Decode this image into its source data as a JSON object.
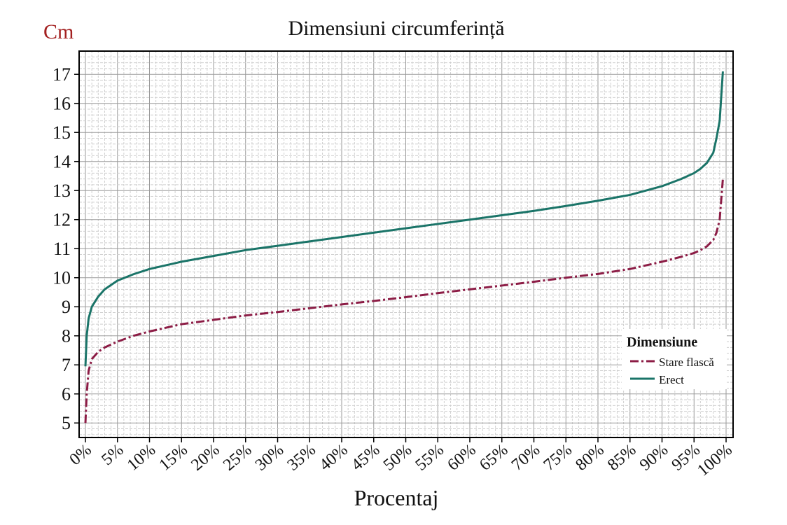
{
  "chart_data": {
    "type": "line",
    "title": "Dimensiuni circumferință",
    "ylabel": "Cm",
    "xlabel": "Procentaj",
    "xlim": [
      0,
      100
    ],
    "ylim": [
      4.5,
      17.8
    ],
    "x_ticks": [
      {
        "value": 0,
        "label": "0%"
      },
      {
        "value": 5,
        "label": "5%"
      },
      {
        "value": 10,
        "label": "10%"
      },
      {
        "value": 15,
        "label": "15%"
      },
      {
        "value": 20,
        "label": "20%"
      },
      {
        "value": 25,
        "label": "25%"
      },
      {
        "value": 30,
        "label": "30%"
      },
      {
        "value": 35,
        "label": "35%"
      },
      {
        "value": 40,
        "label": "40%"
      },
      {
        "value": 45,
        "label": "45%"
      },
      {
        "value": 50,
        "label": "50%"
      },
      {
        "value": 55,
        "label": "55%"
      },
      {
        "value": 60,
        "label": "60%"
      },
      {
        "value": 65,
        "label": "65%"
      },
      {
        "value": 70,
        "label": "70%"
      },
      {
        "value": 75,
        "label": "75%"
      },
      {
        "value": 80,
        "label": "80%"
      },
      {
        "value": 85,
        "label": "85%"
      },
      {
        "value": 90,
        "label": "90%"
      },
      {
        "value": 95,
        "label": "95%"
      },
      {
        "value": 100,
        "label": "100%"
      }
    ],
    "y_ticks": [
      {
        "value": 5,
        "label": "5"
      },
      {
        "value": 6,
        "label": "6"
      },
      {
        "value": 7,
        "label": "7"
      },
      {
        "value": 8,
        "label": "8"
      },
      {
        "value": 9,
        "label": "9"
      },
      {
        "value": 10,
        "label": "10"
      },
      {
        "value": 11,
        "label": "11"
      },
      {
        "value": 12,
        "label": "12"
      },
      {
        "value": 13,
        "label": "13"
      },
      {
        "value": 14,
        "label": "14"
      },
      {
        "value": 15,
        "label": "15"
      },
      {
        "value": 16,
        "label": "16"
      },
      {
        "value": 17,
        "label": "17"
      }
    ],
    "grid": true,
    "legend": {
      "title": "Dimensiune",
      "placement": "bottom-right"
    },
    "series": [
      {
        "name": "Stare flască",
        "color": "#8c1c45",
        "style": "dash-dot",
        "x": [
          0,
          0.2,
          0.5,
          1,
          2,
          3,
          5,
          7.5,
          10,
          15,
          20,
          25,
          30,
          35,
          40,
          45,
          50,
          55,
          60,
          65,
          70,
          75,
          80,
          85,
          90,
          93,
          95,
          96,
          97,
          98,
          98.5,
          99,
          99.5
        ],
        "y": [
          5.0,
          6.0,
          6.8,
          7.2,
          7.45,
          7.6,
          7.8,
          8.0,
          8.15,
          8.4,
          8.55,
          8.7,
          8.82,
          8.95,
          9.08,
          9.2,
          9.33,
          9.47,
          9.6,
          9.73,
          9.86,
          10.0,
          10.13,
          10.3,
          10.55,
          10.72,
          10.85,
          10.95,
          11.08,
          11.3,
          11.55,
          12.0,
          13.4
        ]
      },
      {
        "name": "Erect",
        "color": "#1a7468",
        "style": "solid",
        "x": [
          0,
          0.2,
          0.5,
          1,
          2,
          3,
          5,
          7.5,
          10,
          15,
          20,
          25,
          30,
          35,
          40,
          45,
          50,
          55,
          60,
          65,
          70,
          75,
          80,
          85,
          90,
          93,
          95,
          96,
          97,
          98,
          98.5,
          99,
          99.5
        ],
        "y": [
          6.95,
          8.0,
          8.6,
          9.0,
          9.35,
          9.6,
          9.9,
          10.12,
          10.3,
          10.55,
          10.75,
          10.95,
          11.1,
          11.25,
          11.4,
          11.55,
          11.7,
          11.85,
          12.0,
          12.15,
          12.3,
          12.47,
          12.65,
          12.85,
          13.15,
          13.4,
          13.6,
          13.75,
          13.95,
          14.3,
          14.8,
          15.4,
          17.1
        ]
      }
    ]
  }
}
